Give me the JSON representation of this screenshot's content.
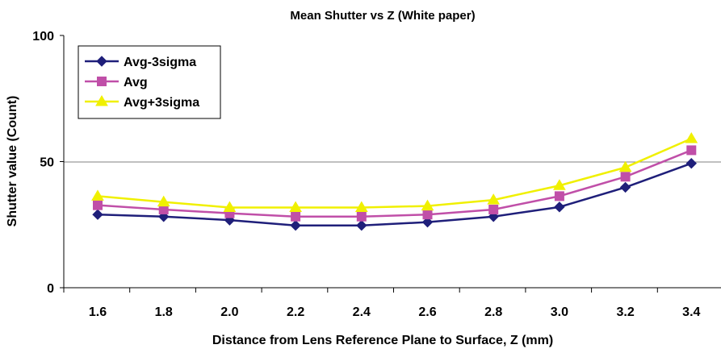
{
  "chart_data": {
    "type": "line",
    "title": "Mean Shutter vs Z (White paper)",
    "xlabel": "Distance from Lens Reference Plane to Surface, Z (mm)",
    "ylabel": "Shutter value (Count)",
    "categories": [
      "1.6",
      "1.8",
      "2.0",
      "2.2",
      "2.4",
      "2.6",
      "2.8",
      "3.0",
      "3.2",
      "3.4"
    ],
    "ylim": [
      0,
      100
    ],
    "yticks": [
      0,
      50,
      100
    ],
    "ytick_labels": [
      "0",
      "50",
      "100"
    ],
    "grid": "horizontal at 50",
    "legend_position": "top-left",
    "series": [
      {
        "name": "Avg-3sigma",
        "color": "#1f1f7a",
        "marker": "diamond",
        "values": [
          29,
          28.2,
          26.8,
          24.7,
          24.7,
          26,
          28.2,
          32,
          39.8,
          49.3
        ]
      },
      {
        "name": "Avg",
        "color": "#c04fa8",
        "marker": "square",
        "values": [
          32.7,
          31,
          29.5,
          28.2,
          28.2,
          29,
          31,
          36.3,
          44,
          54.5
        ]
      },
      {
        "name": "Avg+3sigma",
        "color": "#f0f000",
        "marker": "triangle",
        "values": [
          36.3,
          34,
          31.8,
          31.8,
          31.8,
          32.4,
          34.8,
          40.5,
          47.7,
          59.1
        ]
      }
    ]
  }
}
